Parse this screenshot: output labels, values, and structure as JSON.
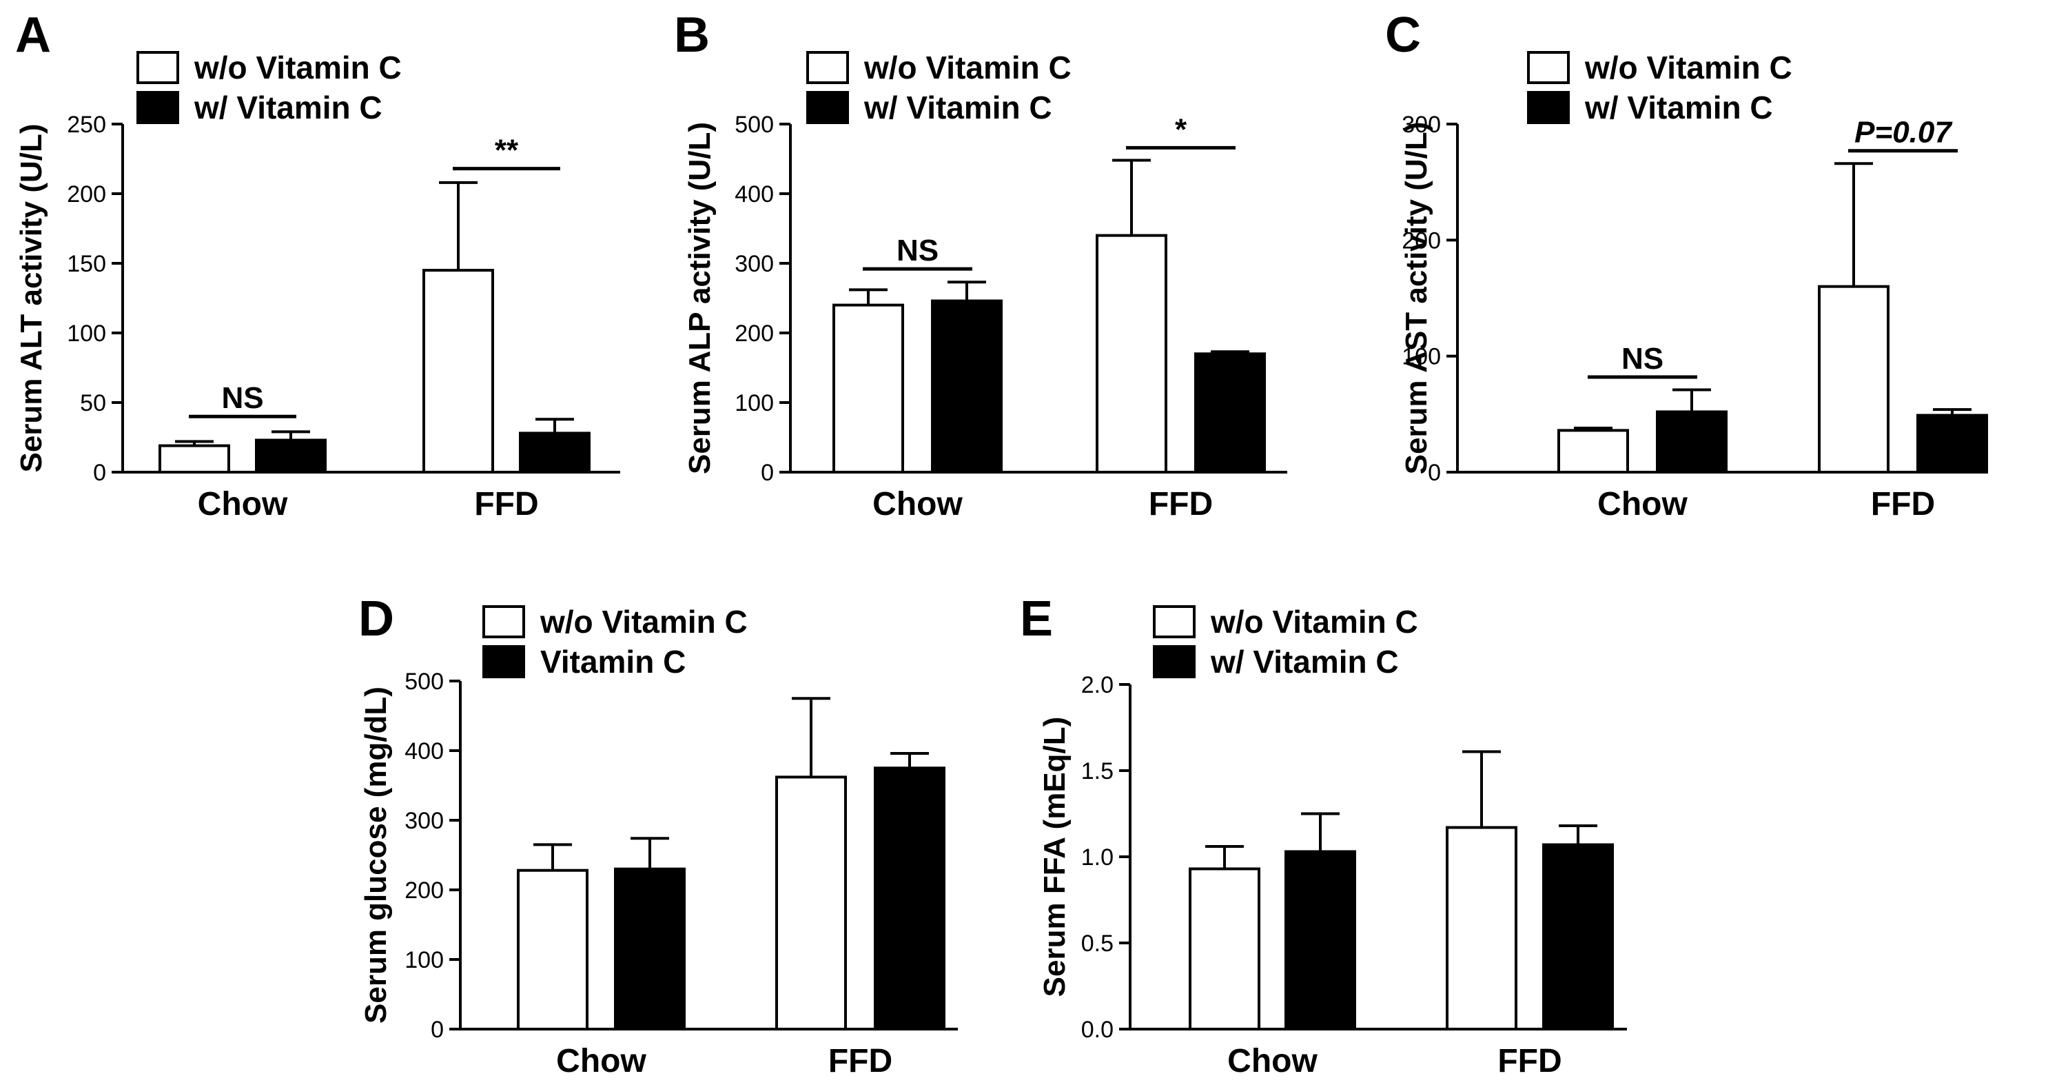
{
  "figure": {
    "groups_shared": [
      "Chow",
      "FFD"
    ]
  },
  "chart_data": [
    {
      "id": "A",
      "type": "bar",
      "panel_label": "A",
      "categories": [
        "Chow",
        "FFD"
      ],
      "series": [
        {
          "name": "w/o Vitamin C",
          "fill": "#ffffff",
          "values": [
            19,
            145
          ],
          "errors": [
            3,
            63
          ]
        },
        {
          "name": "w/ Vitamin C",
          "fill": "#000000",
          "values": [
            23,
            28
          ],
          "errors": [
            6,
            10
          ]
        }
      ],
      "xlabel": "",
      "ylabel": "Serum ALT activity (U/L)",
      "ylim": [
        0,
        250
      ],
      "yticks": [
        0,
        50,
        100,
        150,
        200,
        250
      ],
      "ytick_labels": [
        "0",
        "50",
        "100",
        "150",
        "200",
        "250"
      ],
      "annotations": [
        {
          "text": "NS",
          "group": 0,
          "level": 40,
          "italic": false
        },
        {
          "text": "**",
          "group": 1,
          "level": 218,
          "italic": false
        }
      ]
    },
    {
      "id": "B",
      "type": "bar",
      "panel_label": "B",
      "categories": [
        "Chow",
        "FFD"
      ],
      "series": [
        {
          "name": "w/o Vitamin C",
          "fill": "#ffffff",
          "values": [
            240,
            340
          ],
          "errors": [
            22,
            108
          ]
        },
        {
          "name": "w/ Vitamin C",
          "fill": "#000000",
          "values": [
            246,
            170
          ],
          "errors": [
            27,
            3
          ]
        }
      ],
      "xlabel": "",
      "ylabel": "Serum ALP activity (U/L)",
      "ylim": [
        0,
        500
      ],
      "yticks": [
        0,
        100,
        200,
        300,
        400,
        500
      ],
      "ytick_labels": [
        "0",
        "100",
        "200",
        "300",
        "400",
        "500"
      ],
      "annotations": [
        {
          "text": "NS",
          "group": 0,
          "level": 292,
          "italic": false
        },
        {
          "text": "*",
          "group": 1,
          "level": 466,
          "italic": false
        }
      ]
    },
    {
      "id": "C",
      "type": "bar",
      "panel_label": "C",
      "categories": [
        "Chow",
        "FFD"
      ],
      "series": [
        {
          "name": "w/o Vitamin C",
          "fill": "#ffffff",
          "values": [
            36,
            160
          ],
          "errors": [
            2,
            106
          ]
        },
        {
          "name": "w/ Vitamin C",
          "fill": "#000000",
          "values": [
            52,
            49
          ],
          "errors": [
            19,
            5
          ]
        }
      ],
      "xlabel": "",
      "ylabel": "Serum AST activity (U/L)",
      "ylim": [
        0,
        300
      ],
      "yticks": [
        0,
        100,
        200,
        300
      ],
      "ytick_labels": [
        "0",
        "100",
        "200",
        "300"
      ],
      "annotations": [
        {
          "text": "NS",
          "group": 0,
          "level": 82,
          "italic": false
        },
        {
          "text": "P=0.07",
          "group": 1,
          "level": 277,
          "italic": true
        }
      ]
    },
    {
      "id": "D",
      "type": "bar",
      "panel_label": "D",
      "categories": [
        "Chow",
        "FFD"
      ],
      "series": [
        {
          "name": "w/o Vitamin C",
          "fill": "#ffffff",
          "values": [
            228,
            362
          ],
          "errors": [
            37,
            113
          ]
        },
        {
          "name": "Vitamin C",
          "fill": "#000000",
          "values": [
            230,
            375
          ],
          "errors": [
            44,
            21
          ]
        }
      ],
      "xlabel": "",
      "ylabel": "Serum glucose (mg/dL)",
      "ylim": [
        0,
        500
      ],
      "yticks": [
        0,
        100,
        200,
        300,
        400,
        500
      ],
      "ytick_labels": [
        "0",
        "100",
        "200",
        "300",
        "400",
        "500"
      ],
      "annotations": []
    },
    {
      "id": "E",
      "type": "bar",
      "panel_label": "E",
      "categories": [
        "Chow",
        "FFD"
      ],
      "series": [
        {
          "name": "w/o Vitamin C",
          "fill": "#ffffff",
          "values": [
            0.93,
            1.17
          ],
          "errors": [
            0.13,
            0.44
          ]
        },
        {
          "name": "w/ Vitamin C",
          "fill": "#000000",
          "values": [
            1.03,
            1.07
          ],
          "errors": [
            0.22,
            0.11
          ]
        }
      ],
      "xlabel": "",
      "ylabel": "Serum FFA (mEq/L)",
      "ylim": [
        0,
        2.0
      ],
      "yticks": [
        0,
        0.5,
        1.0,
        1.5,
        2.0
      ],
      "ytick_labels": [
        "0.0",
        "0.5",
        "1.0",
        "1.5",
        "2.0"
      ],
      "annotations": []
    }
  ]
}
